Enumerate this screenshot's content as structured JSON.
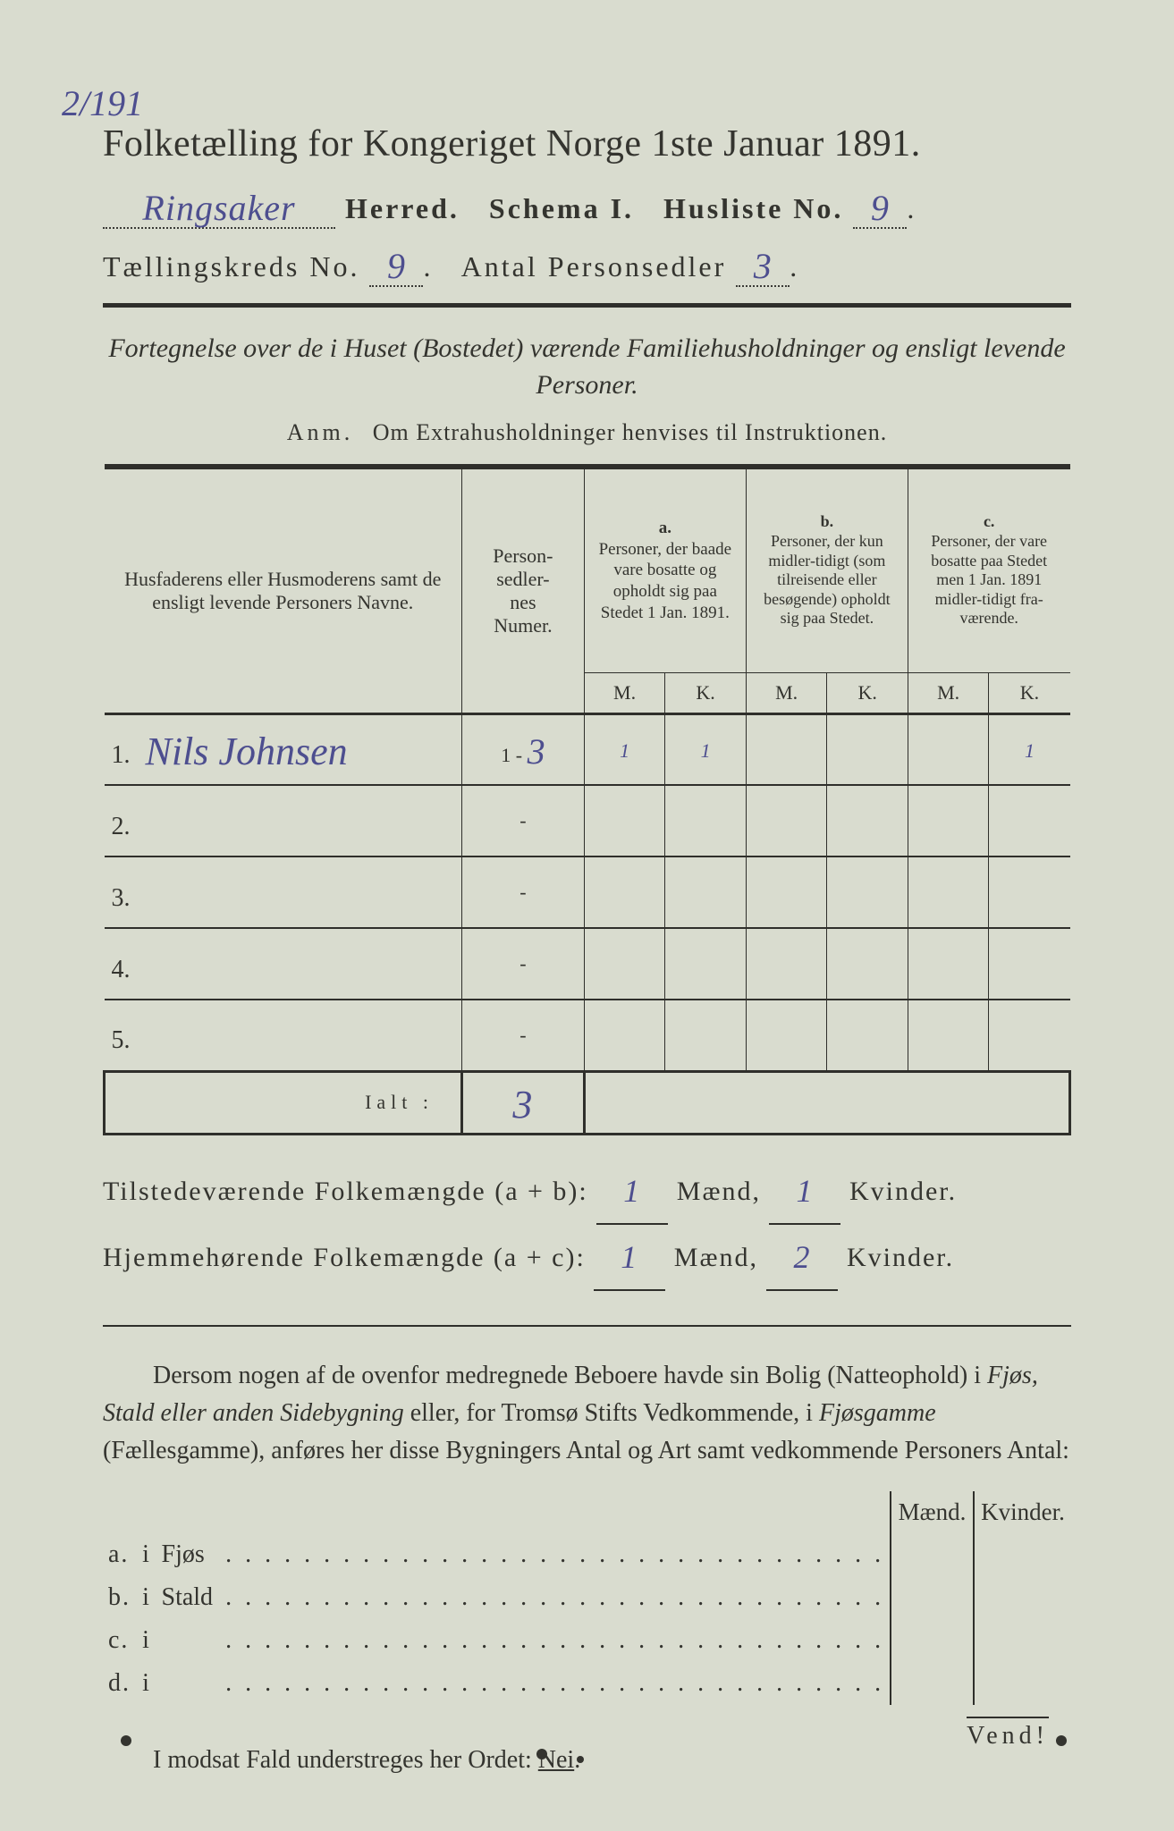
{
  "colors": {
    "paper": "#d9dccf",
    "ink": "#34342f",
    "handwriting": "#4d4e8f",
    "edge_shadow": "#717767"
  },
  "margin_note": "2/191",
  "title": "Folketælling for Kongeriget Norge 1ste Januar 1891.",
  "line2": {
    "herred_value": "Ringsaker",
    "herred_label": "Herred.",
    "schema_label": "Schema I.",
    "husliste_label": "Husliste No.",
    "husliste_value": "9",
    "dot": "."
  },
  "line3": {
    "kreds_label": "Tællingskreds No.",
    "kreds_value": "9",
    "dot1": ".",
    "antal_label": "Antal Personsedler",
    "antal_value": "3",
    "dot2": "."
  },
  "subtitle": "Fortegnelse over de i Huset (Bostedet) værende Familiehusholdninger og ensligt levende Personer.",
  "anm_lead": "Anm.",
  "anm_text": "Om Extrahusholdninger henvises til Instruktionen.",
  "table": {
    "col_names": "Husfaderens eller Husmoderens samt de ensligt levende Personers Navne.",
    "col_num": "Person-\nsedler-\nnes\nNumer.",
    "group_a_key": "a.",
    "group_a": "Personer, der baade vare bosatte og opholdt sig paa Stedet 1 Jan. 1891.",
    "group_b_key": "b.",
    "group_b": "Personer, der kun midler-tidigt (som tilreisende eller besøgende) opholdt sig paa Stedet.",
    "group_c_key": "c.",
    "group_c": "Personer, der vare bosatte paa Stedet men 1 Jan. 1891 midler-tidigt fra-værende.",
    "M": "M.",
    "K": "K.",
    "rows": [
      {
        "n": "1.",
        "name": "Nils Johnsen",
        "num": "1 - 3",
        "aM": "1",
        "aK": "1",
        "bM": "",
        "bK": "",
        "cM": "",
        "cK": "1"
      },
      {
        "n": "2.",
        "name": "",
        "num": "-",
        "aM": "",
        "aK": "",
        "bM": "",
        "bK": "",
        "cM": "",
        "cK": ""
      },
      {
        "n": "3.",
        "name": "",
        "num": "-",
        "aM": "",
        "aK": "",
        "bM": "",
        "bK": "",
        "cM": "",
        "cK": ""
      },
      {
        "n": "4.",
        "name": "",
        "num": "-",
        "aM": "",
        "aK": "",
        "bM": "",
        "bK": "",
        "cM": "",
        "cK": ""
      },
      {
        "n": "5.",
        "name": "",
        "num": "-",
        "aM": "",
        "aK": "",
        "bM": "",
        "bK": "",
        "cM": "",
        "cK": ""
      }
    ],
    "ialt_label": "Ialt :",
    "ialt_value": "3"
  },
  "totals": {
    "line1_a": "Tilstedeværende Folkemængde (a + b):",
    "line1_m": "1",
    "maend": "Mænd,",
    "line1_k": "1",
    "kvinder": "Kvinder.",
    "line2_a": "Hjemmehørende Folkemængde (a + c):",
    "line2_m": "1",
    "line2_k": "2"
  },
  "paragraph": {
    "t1": "Dersom nogen af de ovenfor medregnede Beboere havde sin Bolig (Natteophold) i ",
    "i1": "Fjøs, Stald eller anden Sidebygning",
    "t2": " eller, for Tromsø Stifts Vedkommende, i ",
    "i2": "Fjøsgamme",
    "t3": " (Fællesgamme), anføres her disse Bygningers Antal og Art samt vedkommende Personers Antal:"
  },
  "subtable": {
    "maend": "Mænd.",
    "kvinder": "Kvinder.",
    "rows": [
      {
        "a": "a.",
        "i": "i",
        "label": "Fjøs"
      },
      {
        "a": "b.",
        "i": "i",
        "label": "Stald"
      },
      {
        "a": "c.",
        "i": "i",
        "label": ""
      },
      {
        "a": "d.",
        "i": "i",
        "label": ""
      }
    ],
    "dots": ". . . . . . . . . . . . . . . . . . . . . . . . . . . . . . . . . ."
  },
  "nei": {
    "text": "I modsat Fald understreges her Ordet: ",
    "word": "Nei",
    "dot": "."
  },
  "vend": "Vend!"
}
